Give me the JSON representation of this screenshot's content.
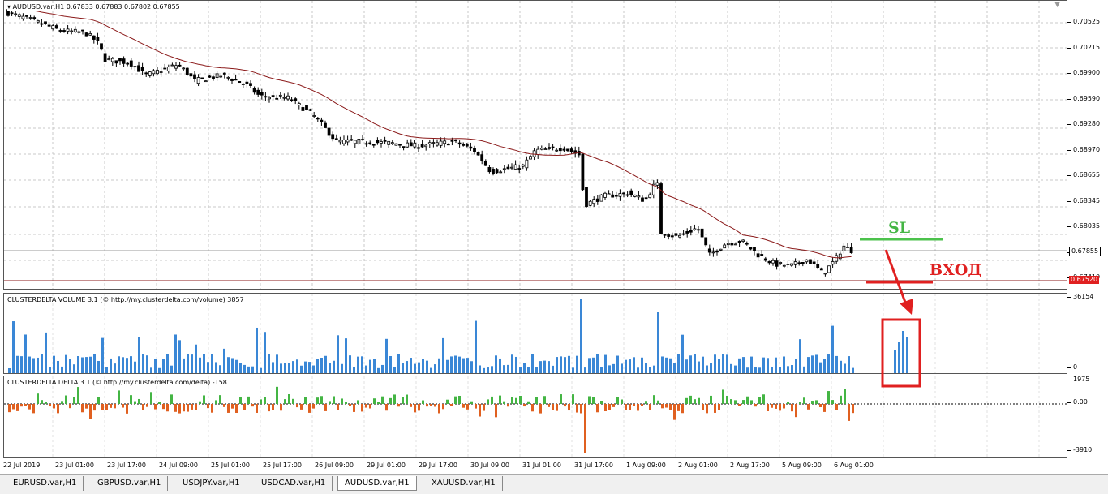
{
  "main": {
    "title": "AUDUSD.var,H1  0.67833 0.67883 0.67802 0.67855",
    "price_ticks": [
      "0.70525",
      "0.70215",
      "0.69900",
      "0.69590",
      "0.69280",
      "0.68970",
      "0.68655",
      "0.68345",
      "0.68035",
      "0.67725",
      "0.67410"
    ],
    "current_price": "0.67855",
    "level_price": "0.67520",
    "sl_label": "SL",
    "entry_label": "ВХОД"
  },
  "volume": {
    "title": "CLUSTERDELTA VOLUME 3.1 (© http://my.clusterdelta.com/volume) 3857",
    "max_label": "36154",
    "min_label": "0"
  },
  "delta": {
    "title": "CLUSTERDELTA DELTA 3.1 (© http://my.clusterdelta.com/delta) -158",
    "max_label": "1975",
    "zero_label": "0.00",
    "min_label": "-3910"
  },
  "time_ticks": [
    "22 Jul 2019",
    "23 Jul 01:00",
    "23 Jul 17:00",
    "24 Jul 09:00",
    "25 Jul 01:00",
    "25 Jul 17:00",
    "26 Jul 09:00",
    "29 Jul 01:00",
    "29 Jul 17:00",
    "30 Jul 09:00",
    "31 Jul 01:00",
    "31 Jul 17:00",
    "1 Aug 09:00",
    "2 Aug 01:00",
    "2 Aug 17:00",
    "5 Aug 09:00",
    "6 Aug 01:00"
  ],
  "tabs": [
    "EURUSD.var,H1",
    "GBPUSD.var,H1",
    "USDJPY.var,H1",
    "USDCAD.var,H1",
    "AUDUSD.var,H1",
    "XAUUSD.var,H1"
  ],
  "active_tab": "AUDUSD.var,H1",
  "colors": {
    "ma": "#8b1a1a",
    "volume": "#3a87d6",
    "delta_pos": "#44b544",
    "delta_neg": "#e06020",
    "sl_line": "#4cc24c",
    "entry": "#e02020"
  },
  "chart_data": {
    "type": "line",
    "title": "AUDUSD.var,H1",
    "x": [
      "22 Jul 2019",
      "23 Jul 01:00",
      "23 Jul 17:00",
      "24 Jul 09:00",
      "25 Jul 01:00",
      "25 Jul 17:00",
      "26 Jul 09:00",
      "29 Jul 01:00",
      "29 Jul 17:00",
      "30 Jul 09:00",
      "31 Jul 01:00",
      "31 Jul 17:00",
      "1 Aug 09:00",
      "2 Aug 01:00",
      "2 Aug 17:00",
      "5 Aug 09:00",
      "6 Aug 01:00"
    ],
    "series": [
      {
        "name": "AUDUSD.var,H1",
        "values": [
          0.7045,
          0.7025,
          0.6995,
          0.699,
          0.6975,
          0.696,
          0.691,
          0.6905,
          0.69,
          0.6875,
          0.6895,
          0.684,
          0.685,
          0.6805,
          0.679,
          0.6765,
          0.678
        ]
      }
    ],
    "ylim": [
      0.6741,
      0.706
    ]
  }
}
